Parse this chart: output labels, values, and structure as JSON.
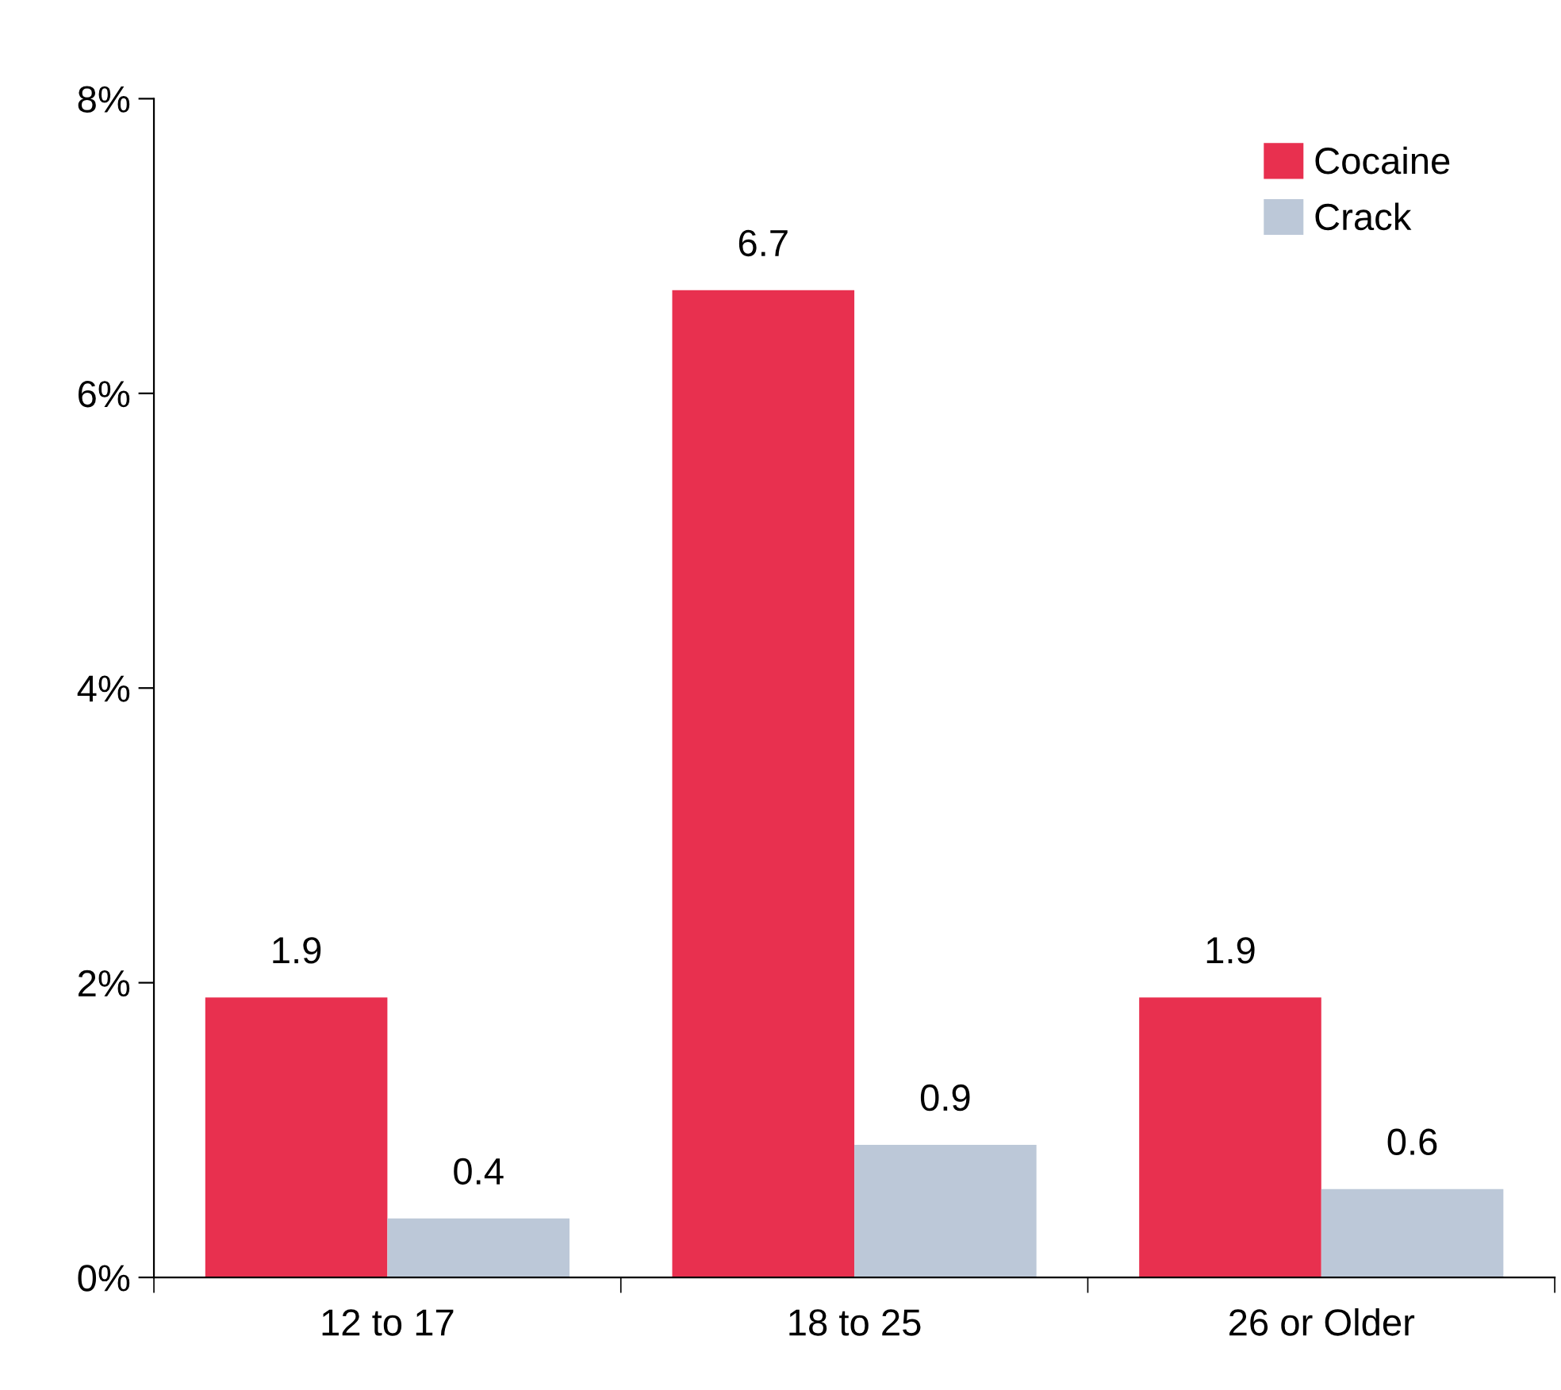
{
  "chart_data": {
    "type": "bar",
    "categories": [
      "12 to 17",
      "18 to 25",
      "26 or Older"
    ],
    "series": [
      {
        "name": "Cocaine",
        "color": "#e8304f",
        "values": [
          1.9,
          6.7,
          1.9
        ]
      },
      {
        "name": "Crack",
        "color": "#bcc8d8",
        "values": [
          0.4,
          0.9,
          0.6
        ]
      }
    ],
    "ylim": [
      0,
      8
    ],
    "yticks": [
      {
        "value": 0,
        "label": "0%"
      },
      {
        "value": 2,
        "label": "2%"
      },
      {
        "value": 4,
        "label": "4%"
      },
      {
        "value": 6,
        "label": "6%"
      },
      {
        "value": 8,
        "label": "8%"
      }
    ],
    "data_labels": true,
    "grid": false,
    "legend": "top right"
  }
}
